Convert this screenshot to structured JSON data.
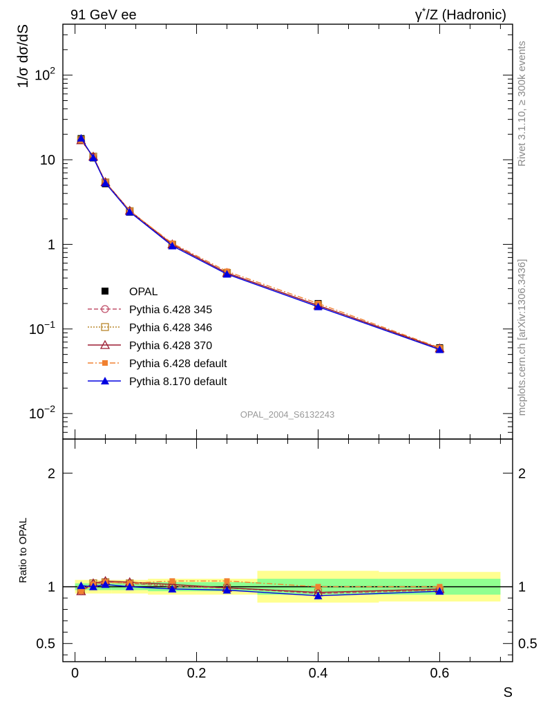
{
  "header": {
    "left": "91 GeV ee",
    "right": "γ*/Z (Hadronic)"
  },
  "side_labels": {
    "rivet": "Rivet 3.1.10, ≥ 300k events",
    "mcplots": "mcplots.cern.ch [arXiv:1306.3436]"
  },
  "analysis_id": "OPAL_2004_S6132243",
  "chart_data": [
    {
      "type": "line",
      "ylabel": "1/σ dσ/dS",
      "xlabel": "S",
      "xlim": [
        -0.02,
        0.72
      ],
      "yscale": "log",
      "ylim": [
        0.005,
        400
      ],
      "yticks": [
        {
          "v": 0.01,
          "b": "10",
          "e": "−2"
        },
        {
          "v": 0.1,
          "b": "10",
          "e": "−1"
        },
        {
          "v": 1,
          "b": "1",
          "e": ""
        },
        {
          "v": 10,
          "b": "10",
          "e": ""
        },
        {
          "v": 100,
          "b": "10",
          "e": "2"
        }
      ],
      "x": [
        0.01,
        0.03,
        0.05,
        0.09,
        0.16,
        0.25,
        0.4,
        0.6
      ],
      "series": [
        {
          "name": "OPAL",
          "color": "#000000",
          "marker": "square",
          "line": "none",
          "values": [
            17.8,
            10.5,
            5.2,
            2.4,
            0.98,
            0.46,
            0.2,
            0.06
          ]
        },
        {
          "name": "Pythia 6.428 345",
          "color": "#c0506a",
          "marker": "circle-open",
          "line": "dashed",
          "values": [
            17.1,
            10.8,
            5.4,
            2.48,
            0.99,
            0.46,
            0.19,
            0.058
          ]
        },
        {
          "name": "Pythia 6.428 346",
          "color": "#b8862b",
          "marker": "square-open",
          "line": "dotted",
          "values": [
            17.2,
            10.9,
            5.4,
            2.47,
            0.99,
            0.46,
            0.19,
            0.058
          ]
        },
        {
          "name": "Pythia 6.428 370",
          "color": "#9b1b30",
          "marker": "triangle-open",
          "line": "solid",
          "values": [
            17.0,
            10.9,
            5.45,
            2.5,
            1.0,
            0.46,
            0.19,
            0.059
          ]
        },
        {
          "name": "Pythia 6.428 default",
          "color": "#f08030",
          "marker": "square-filled",
          "line": "dashdot",
          "values": [
            17.1,
            10.7,
            5.4,
            2.48,
            1.03,
            0.48,
            0.2,
            0.06
          ]
        },
        {
          "name": "Pythia 8.170 default",
          "color": "#0000e0",
          "marker": "triangle-filled",
          "line": "solid",
          "values": [
            18.0,
            10.6,
            5.3,
            2.42,
            0.96,
            0.445,
            0.183,
            0.057
          ]
        }
      ],
      "legend": "lower-left"
    },
    {
      "type": "line",
      "ylabel": "Ratio to OPAL",
      "xlabel": "S",
      "xlim": [
        -0.02,
        0.72
      ],
      "ylim": [
        0.34,
        2.3
      ],
      "yticks": [
        0.5,
        1,
        2
      ],
      "xticks": [
        {
          "v": 0,
          "t": "0"
        },
        {
          "v": 0.2,
          "t": "0.2"
        },
        {
          "v": 0.4,
          "t": "0.4"
        },
        {
          "v": 0.6,
          "t": "0.6"
        }
      ],
      "bands": {
        "bins": [
          [
            0,
            0.02
          ],
          [
            0.02,
            0.04
          ],
          [
            0.04,
            0.06
          ],
          [
            0.06,
            0.12
          ],
          [
            0.12,
            0.2
          ],
          [
            0.2,
            0.3
          ],
          [
            0.3,
            0.5
          ],
          [
            0.5,
            0.7
          ]
        ],
        "inner": [
          0.03,
          0.03,
          0.03,
          0.03,
          0.04,
          0.04,
          0.07,
          0.07
        ],
        "outer": [
          0.06,
          0.06,
          0.06,
          0.06,
          0.07,
          0.07,
          0.14,
          0.13
        ],
        "inner_color": "#90ff90",
        "outer_color": "#ffff90"
      },
      "x": [
        0.01,
        0.03,
        0.05,
        0.09,
        0.16,
        0.25,
        0.4,
        0.6
      ],
      "series": [
        {
          "name": "Pythia 6.428 345",
          "values": [
            0.96,
            1.02,
            1.04,
            1.03,
            1.0,
            0.99,
            0.94,
            0.97
          ]
        },
        {
          "name": "Pythia 6.428 346",
          "values": [
            0.97,
            1.03,
            1.04,
            1.03,
            1.01,
            0.99,
            0.95,
            0.97
          ]
        },
        {
          "name": "Pythia 6.428 370",
          "values": [
            0.96,
            1.03,
            1.05,
            1.04,
            1.02,
            0.99,
            0.95,
            0.98
          ]
        },
        {
          "name": "Pythia 6.428 default",
          "values": [
            0.96,
            1.02,
            1.04,
            1.03,
            1.05,
            1.05,
            1.0,
            1.0
          ]
        },
        {
          "name": "Pythia 8.170 default",
          "values": [
            1.01,
            1.0,
            1.02,
            1.0,
            0.98,
            0.97,
            0.92,
            0.96
          ]
        }
      ]
    }
  ]
}
